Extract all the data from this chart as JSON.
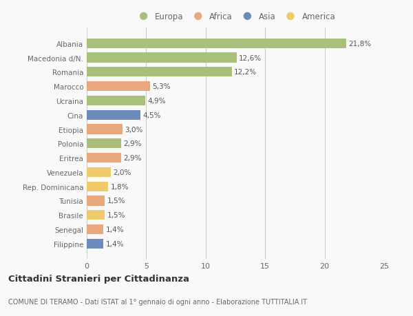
{
  "countries": [
    "Albania",
    "Macedonia d/N.",
    "Romania",
    "Marocco",
    "Ucraina",
    "Cina",
    "Etiopia",
    "Polonia",
    "Eritrea",
    "Venezuela",
    "Rep. Dominicana",
    "Tunisia",
    "Brasile",
    "Senegal",
    "Filippine"
  ],
  "values": [
    21.8,
    12.6,
    12.2,
    5.3,
    4.9,
    4.5,
    3.0,
    2.9,
    2.9,
    2.0,
    1.8,
    1.5,
    1.5,
    1.4,
    1.4
  ],
  "labels": [
    "21,8%",
    "12,6%",
    "12,2%",
    "5,3%",
    "4,9%",
    "4,5%",
    "3,0%",
    "2,9%",
    "2,9%",
    "2,0%",
    "1,8%",
    "1,5%",
    "1,5%",
    "1,4%",
    "1,4%"
  ],
  "continents": [
    "Europa",
    "Europa",
    "Europa",
    "Africa",
    "Europa",
    "Asia",
    "Africa",
    "Europa",
    "Africa",
    "America",
    "America",
    "Africa",
    "America",
    "Africa",
    "Asia"
  ],
  "colors": {
    "Europa": "#a8c07a",
    "Africa": "#e8a87c",
    "Asia": "#6b8cba",
    "America": "#f0c96b"
  },
  "legend_order": [
    "Europa",
    "Africa",
    "Asia",
    "America"
  ],
  "xlim": [
    0,
    25
  ],
  "xticks": [
    0,
    5,
    10,
    15,
    20,
    25
  ],
  "title": "Cittadini Stranieri per Cittadinanza",
  "subtitle": "COMUNE DI TERAMO - Dati ISTAT al 1° gennaio di ogni anno - Elaborazione TUTTITALIA.IT",
  "background_color": "#f9f9f9",
  "bar_height": 0.68,
  "grid_color": "#cccccc",
  "text_color": "#666666",
  "label_text_color": "#555555"
}
